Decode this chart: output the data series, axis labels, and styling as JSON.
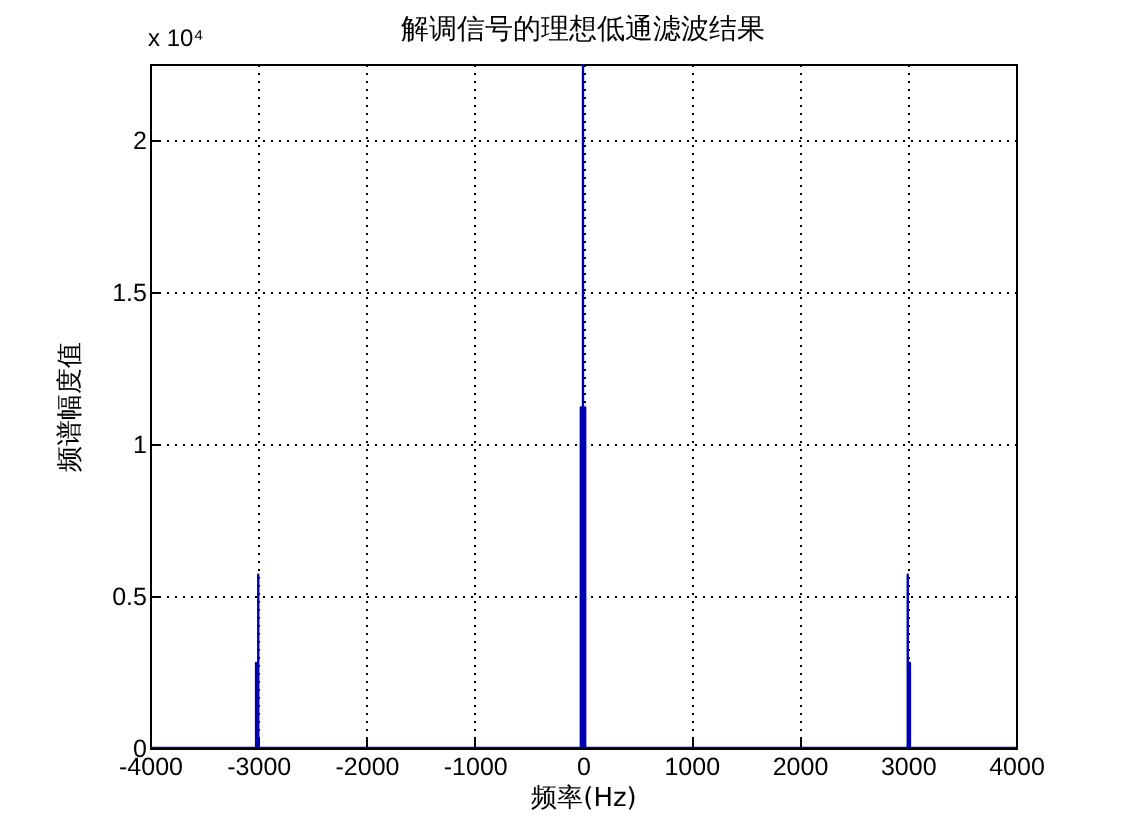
{
  "chart_data": {
    "type": "line",
    "title": "解调信号的理想低通滤波结果",
    "xlabel": "频率(Hz)",
    "ylabel": "频谱幅度值",
    "annotations": [
      "x 10⁴"
    ],
    "x": [
      -4000,
      -3020,
      -3020,
      -3020,
      -3000,
      -3000,
      -3000,
      -20,
      -20,
      -20,
      0,
      0,
      0,
      20,
      20,
      20,
      3000,
      3000,
      3000,
      3020,
      3020,
      3020,
      4000
    ],
    "series": [
      {
        "color": "#0000b0",
        "values": [
          0,
          0,
          0.28,
          0,
          0,
          0.57,
          0,
          0,
          1.12,
          0,
          0,
          2.25,
          0,
          0,
          1.12,
          0,
          0,
          0.57,
          0,
          0,
          0.28,
          0,
          0
        ]
      }
    ],
    "xlim": [
      -4000,
      4000
    ],
    "xticks": [
      -4000,
      -3000,
      -2000,
      -1000,
      0,
      1000,
      2000,
      3000,
      4000
    ],
    "ylim": [
      0,
      2.25
    ],
    "yticks": [
      0,
      0.5,
      1,
      1.5,
      2
    ],
    "grid": true,
    "line_style": "solid"
  }
}
